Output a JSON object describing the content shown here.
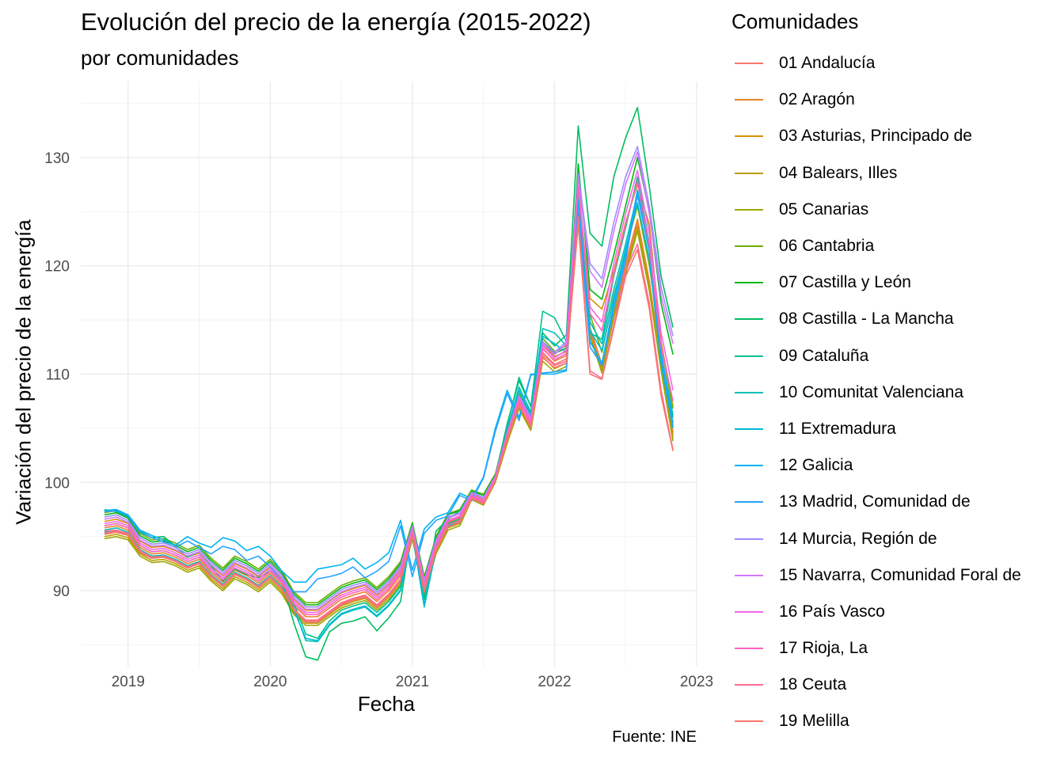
{
  "title": "Evolución del precio de la energía (2015-2022)",
  "subtitle": "por comunidades",
  "caption": "Fuente: INE",
  "chart_data": {
    "type": "line",
    "xlabel": "Fecha",
    "ylabel": "Variación del precio de la energía",
    "x_ticks": [
      "2019",
      "2020",
      "2021",
      "2022",
      "2023"
    ],
    "y_ticks": [
      90,
      100,
      110,
      120,
      130
    ],
    "xlim": [
      "2018-09",
      "2023-01"
    ],
    "ylim": [
      83,
      137
    ],
    "grid": true,
    "legend_title": "Comunidades",
    "legend_position": "right",
    "x": [
      "2018-11",
      "2018-12",
      "2019-01",
      "2019-02",
      "2019-03",
      "2019-04",
      "2019-05",
      "2019-06",
      "2019-07",
      "2019-08",
      "2019-09",
      "2019-10",
      "2019-11",
      "2019-12",
      "2020-01",
      "2020-02",
      "2020-03",
      "2020-04",
      "2020-05",
      "2020-06",
      "2020-07",
      "2020-08",
      "2020-09",
      "2020-10",
      "2020-11",
      "2020-12",
      "2021-01",
      "2021-02",
      "2021-03",
      "2021-04",
      "2021-05",
      "2021-06",
      "2021-07",
      "2021-08",
      "2021-09",
      "2021-10",
      "2021-11",
      "2021-12",
      "2022-01",
      "2022-02",
      "2022-03",
      "2022-04",
      "2022-05",
      "2022-06",
      "2022-07",
      "2022-08",
      "2022-09",
      "2022-10",
      "2022-11"
    ],
    "series": [
      {
        "name": "01 Andalucía",
        "color": "#F8766D",
        "values": [
          95.2,
          95.4,
          95.1,
          93.5,
          93.0,
          93.1,
          92.7,
          92.1,
          92.5,
          91.3,
          90.4,
          91.5,
          91.0,
          90.3,
          91.2,
          90.1,
          88.2,
          87.2,
          87.2,
          88.0,
          88.8,
          89.2,
          89.5,
          88.6,
          89.6,
          91.0,
          95.2,
          90.0,
          93.8,
          96.0,
          96.4,
          98.6,
          98.2,
          100.3,
          104.0,
          107.2,
          105.3,
          112.0,
          110.9,
          111.4,
          126.2,
          114.0,
          110.6,
          115.8,
          119.8,
          123.9,
          118.3,
          110.9,
          104.3
        ]
      },
      {
        "name": "02 Aragón",
        "color": "#E9842C",
        "values": [
          95.8,
          96.0,
          95.6,
          94.0,
          93.4,
          93.5,
          93.1,
          92.5,
          92.9,
          91.7,
          90.8,
          91.9,
          91.4,
          90.7,
          91.6,
          90.5,
          88.6,
          87.6,
          87.6,
          88.4,
          89.2,
          89.6,
          89.9,
          89.0,
          90.0,
          91.4,
          95.5,
          90.4,
          94.1,
          96.3,
          96.7,
          98.9,
          98.4,
          100.5,
          104.3,
          107.5,
          105.6,
          112.4,
          111.2,
          111.7,
          126.6,
          114.3,
          110.9,
          116.1,
          120.2,
          124.3,
          118.6,
          111.2,
          104.6
        ]
      },
      {
        "name": "03 Asturias, Principado de",
        "color": "#D69100",
        "values": [
          96.4,
          96.6,
          96.2,
          94.6,
          94.0,
          94.1,
          93.7,
          93.1,
          93.5,
          92.3,
          91.4,
          92.5,
          92.0,
          91.3,
          92.2,
          91.1,
          89.2,
          88.2,
          88.2,
          89.0,
          89.8,
          90.2,
          90.5,
          89.6,
          90.6,
          92.0,
          95.9,
          90.8,
          94.5,
          96.7,
          97.1,
          99.1,
          98.6,
          100.7,
          104.6,
          107.8,
          106.0,
          112.8,
          111.6,
          112.1,
          127.0,
          117.0,
          116.0,
          119.5,
          124.0,
          127.5,
          123.8,
          113.0,
          107.0
        ]
      },
      {
        "name": "04 Balears, Illes",
        "color": "#BC9D00",
        "values": [
          95.0,
          95.2,
          94.9,
          93.4,
          92.8,
          92.9,
          92.5,
          91.9,
          92.3,
          91.1,
          90.2,
          91.3,
          90.8,
          90.1,
          91.0,
          89.9,
          88.0,
          87.0,
          87.0,
          87.8,
          88.6,
          89.0,
          89.3,
          88.4,
          89.4,
          90.8,
          95.0,
          89.8,
          93.6,
          95.8,
          96.2,
          98.5,
          98.0,
          100.1,
          103.8,
          107.0,
          105.0,
          111.6,
          110.5,
          111.0,
          125.8,
          113.7,
          110.3,
          115.5,
          119.5,
          123.6,
          118.0,
          110.6,
          104.0
        ]
      },
      {
        "name": "05 Canarias",
        "color": "#9CA700",
        "values": [
          94.8,
          95.0,
          94.7,
          93.2,
          92.6,
          92.7,
          92.3,
          91.7,
          92.1,
          90.9,
          90.0,
          91.1,
          90.6,
          89.9,
          90.8,
          89.7,
          87.8,
          86.8,
          86.8,
          87.6,
          88.4,
          88.8,
          89.1,
          88.2,
          89.2,
          90.6,
          94.8,
          89.6,
          93.4,
          95.6,
          96.0,
          98.4,
          97.9,
          100.0,
          103.6,
          106.8,
          104.8,
          111.2,
          110.2,
          110.7,
          125.4,
          113.5,
          110.1,
          115.2,
          119.2,
          123.2,
          117.7,
          110.3,
          103.8
        ]
      },
      {
        "name": "06 Cantabria",
        "color": "#6FB000",
        "values": [
          97.2,
          97.4,
          96.9,
          95.3,
          94.7,
          94.8,
          94.4,
          93.8,
          94.2,
          93.0,
          92.1,
          93.2,
          92.7,
          92.0,
          92.9,
          91.8,
          89.9,
          88.9,
          88.9,
          89.7,
          90.5,
          90.9,
          91.2,
          90.3,
          91.3,
          92.7,
          96.3,
          91.3,
          95.0,
          97.1,
          97.5,
          99.3,
          98.9,
          100.8,
          105.0,
          108.2,
          106.4,
          113.3,
          112.1,
          112.6,
          127.8,
          115.5,
          112.0,
          117.2,
          121.4,
          125.5,
          120.0,
          112.6,
          106.8
        ]
      },
      {
        "name": "07 Castilla y León",
        "color": "#00B813",
        "values": [
          97.0,
          97.2,
          96.7,
          95.1,
          94.5,
          94.6,
          94.2,
          93.6,
          94.0,
          92.8,
          91.9,
          93.0,
          92.5,
          91.8,
          92.7,
          91.6,
          89.7,
          88.7,
          88.7,
          89.5,
          90.3,
          90.7,
          91.0,
          90.1,
          91.1,
          92.5,
          96.2,
          91.2,
          94.9,
          97.0,
          97.4,
          99.2,
          98.8,
          100.7,
          104.9,
          108.0,
          106.2,
          113.0,
          111.9,
          112.4,
          129.4,
          117.8,
          116.9,
          121.0,
          125.5,
          130.0,
          125.0,
          116.5,
          111.8
        ]
      },
      {
        "name": "08 Castilla - La Mancha",
        "color": "#00BD61",
        "values": [
          97.5,
          97.3,
          96.8,
          95.5,
          94.9,
          95.0,
          94.1,
          93.1,
          93.6,
          92.3,
          90.9,
          92.0,
          91.5,
          91.2,
          91.8,
          90.9,
          87.0,
          83.9,
          83.6,
          86.2,
          87.0,
          87.2,
          87.6,
          86.3,
          87.5,
          89.0,
          96.0,
          89.2,
          95.5,
          96.6,
          97.4,
          99.1,
          98.6,
          100.6,
          105.4,
          109.4,
          107.0,
          113.8,
          112.6,
          113.6,
          132.9,
          123.0,
          121.8,
          128.2,
          131.8,
          134.6,
          127.3,
          119.0,
          114.3
        ]
      },
      {
        "name": "09 Cataluña",
        "color": "#00C08E",
        "values": [
          96.0,
          96.2,
          95.8,
          94.2,
          93.6,
          93.7,
          93.3,
          92.7,
          93.1,
          91.9,
          91.0,
          92.1,
          91.6,
          90.9,
          91.8,
          90.7,
          88.8,
          86.0,
          85.6,
          87.2,
          88.2,
          88.6,
          88.9,
          88.0,
          89.0,
          90.4,
          95.6,
          89.2,
          94.2,
          96.2,
          96.6,
          98.8,
          98.3,
          100.4,
          105.2,
          109.7,
          107.0,
          115.8,
          115.2,
          113.0,
          124.0,
          113.8,
          113.2,
          119.0,
          123.5,
          128.2,
          122.0,
          111.5,
          106.0
        ]
      },
      {
        "name": "10 Comunitat Valenciana",
        "color": "#00C0B4",
        "values": [
          95.6,
          95.8,
          95.4,
          93.8,
          93.2,
          93.3,
          92.9,
          92.3,
          92.7,
          91.5,
          90.6,
          91.7,
          91.2,
          90.5,
          91.4,
          90.3,
          88.4,
          85.4,
          85.3,
          86.8,
          87.8,
          88.2,
          88.5,
          87.6,
          88.6,
          90.0,
          95.4,
          88.7,
          94.0,
          96.0,
          96.5,
          98.7,
          98.2,
          100.3,
          104.8,
          108.8,
          106.5,
          114.2,
          113.8,
          112.6,
          127.0,
          114.8,
          112.8,
          117.8,
          122.0,
          126.6,
          121.3,
          111.8,
          106.2
        ]
      },
      {
        "name": "11 Extremadura",
        "color": "#00BBD6",
        "values": [
          95.4,
          95.6,
          95.2,
          93.6,
          93.0,
          93.1,
          92.7,
          92.1,
          92.5,
          91.3,
          90.4,
          91.5,
          91.0,
          90.3,
          91.2,
          90.1,
          88.2,
          85.6,
          85.4,
          86.9,
          87.9,
          88.3,
          88.6,
          87.7,
          88.7,
          90.1,
          95.2,
          88.5,
          93.8,
          95.9,
          96.3,
          98.6,
          98.1,
          100.2,
          104.5,
          108.5,
          106.2,
          113.5,
          112.8,
          112.0,
          126.0,
          114.0,
          112.2,
          117.0,
          121.5,
          125.8,
          120.6,
          111.0,
          105.0
        ]
      },
      {
        "name": "12 Galicia",
        "color": "#00B3F2",
        "values": [
          97.4,
          97.5,
          97.0,
          95.6,
          95.1,
          94.7,
          94.2,
          95.0,
          94.4,
          94.0,
          94.9,
          94.6,
          93.7,
          94.1,
          93.2,
          91.8,
          90.8,
          90.8,
          92.0,
          92.2,
          92.4,
          93.0,
          92.0,
          92.6,
          93.5,
          96.5,
          91.9,
          95.7,
          96.8,
          97.2,
          99.0,
          98.5,
          100.5,
          105.0,
          108.5,
          106.0,
          110.0,
          110.0,
          110.0,
          110.3,
          125.5,
          113.0,
          111.0,
          116.5,
          121.0,
          127.0,
          122.0,
          112.0,
          105.5
        ]
      },
      {
        "name": "13 Madrid, Comunidad de",
        "color": "#29A3FF",
        "values": [
          97.3,
          97.4,
          96.9,
          95.4,
          94.9,
          94.5,
          94.0,
          94.6,
          94.0,
          93.4,
          94.1,
          93.8,
          92.8,
          93.2,
          92.2,
          90.9,
          89.9,
          89.9,
          91.1,
          91.3,
          91.6,
          92.2,
          91.2,
          91.8,
          92.7,
          96.0,
          91.3,
          95.3,
          96.5,
          96.9,
          98.8,
          98.3,
          100.4,
          104.7,
          108.2,
          105.7,
          109.9,
          110.1,
          110.2,
          110.4,
          125.2,
          112.5,
          110.8,
          116.0,
          120.5,
          126.5,
          121.5,
          111.5,
          105.2
        ]
      },
      {
        "name": "14 Murcia, Región de",
        "color": "#9C8DFF",
        "values": [
          96.8,
          97.0,
          96.5,
          94.9,
          94.3,
          94.4,
          94.0,
          93.4,
          93.8,
          92.6,
          91.7,
          92.8,
          92.3,
          91.6,
          92.5,
          91.4,
          89.5,
          88.5,
          88.5,
          89.3,
          90.1,
          90.5,
          90.8,
          89.9,
          90.9,
          92.3,
          96.0,
          91.0,
          94.7,
          96.8,
          97.2,
          99.1,
          98.6,
          100.6,
          104.6,
          108.0,
          106.0,
          113.0,
          112.0,
          113.0,
          128.5,
          120.2,
          118.8,
          124.0,
          128.2,
          131.0,
          125.5,
          118.0,
          113.5
        ]
      },
      {
        "name": "15 Navarra, Comunidad Foral de",
        "color": "#D277FF",
        "values": [
          96.6,
          96.8,
          96.3,
          94.7,
          94.1,
          94.2,
          93.8,
          93.2,
          93.6,
          92.4,
          91.5,
          92.6,
          92.1,
          91.4,
          92.3,
          91.2,
          89.3,
          88.3,
          88.3,
          89.1,
          89.9,
          90.3,
          90.6,
          89.7,
          90.7,
          92.1,
          95.8,
          90.8,
          94.6,
          96.7,
          97.1,
          99.0,
          98.5,
          100.5,
          104.5,
          107.9,
          105.9,
          112.8,
          111.8,
          112.8,
          128.0,
          119.5,
          118.0,
          123.2,
          127.5,
          130.5,
          124.8,
          117.2,
          112.8
        ]
      },
      {
        "name": "16 País Vasco",
        "color": "#F365E6",
        "values": [
          96.2,
          96.4,
          96.0,
          94.4,
          93.8,
          93.9,
          93.5,
          92.9,
          93.3,
          92.1,
          91.2,
          92.3,
          91.8,
          91.1,
          92.0,
          90.9,
          89.0,
          88.0,
          88.0,
          88.8,
          89.6,
          90.0,
          90.3,
          89.4,
          90.4,
          91.8,
          95.6,
          90.6,
          94.4,
          96.5,
          96.9,
          98.8,
          98.3,
          100.4,
          104.4,
          107.7,
          105.7,
          112.6,
          111.5,
          112.2,
          127.4,
          116.2,
          114.8,
          120.2,
          124.8,
          128.8,
          123.0,
          113.8,
          108.5
        ]
      },
      {
        "name": "17 Rioja, La",
        "color": "#FF62BC",
        "values": [
          96.0,
          96.2,
          95.8,
          94.2,
          93.6,
          93.7,
          93.3,
          92.7,
          93.1,
          91.9,
          91.0,
          92.1,
          91.6,
          90.9,
          91.8,
          90.7,
          88.8,
          87.8,
          87.8,
          88.6,
          89.4,
          89.8,
          90.1,
          89.2,
          90.2,
          91.6,
          95.5,
          90.4,
          94.2,
          96.4,
          96.8,
          98.7,
          98.2,
          100.3,
          104.3,
          107.6,
          105.5,
          112.3,
          111.3,
          111.9,
          127.2,
          115.6,
          114.0,
          119.2,
          123.8,
          127.8,
          121.8,
          112.6,
          107.5
        ]
      },
      {
        "name": "18 Ceuta",
        "color": "#FF6C91",
        "values": [
          95.5,
          95.6,
          95.3,
          93.7,
          93.1,
          93.2,
          92.8,
          92.2,
          92.6,
          91.4,
          90.5,
          91.6,
          91.1,
          90.4,
          91.3,
          90.2,
          88.3,
          87.3,
          87.3,
          88.1,
          88.9,
          89.3,
          89.6,
          88.7,
          89.7,
          91.1,
          95.3,
          90.1,
          93.9,
          96.1,
          96.5,
          98.6,
          98.1,
          100.2,
          104.1,
          107.3,
          105.2,
          111.8,
          110.8,
          111.2,
          124.5,
          110.3,
          109.6,
          114.5,
          119.5,
          122.0,
          116.5,
          108.5,
          103.0
        ]
      },
      {
        "name": "19 Melilla",
        "color": "#F8766D",
        "values": [
          95.3,
          95.5,
          95.2,
          93.6,
          93.0,
          93.1,
          92.7,
          92.1,
          92.5,
          91.3,
          90.4,
          91.5,
          91.0,
          90.3,
          91.2,
          90.1,
          88.2,
          87.1,
          87.1,
          87.9,
          88.7,
          89.1,
          89.4,
          88.5,
          89.5,
          90.9,
          95.1,
          89.9,
          93.7,
          95.9,
          96.3,
          98.5,
          98.0,
          100.1,
          103.9,
          107.1,
          105.1,
          111.5,
          110.6,
          111.0,
          123.8,
          110.0,
          109.5,
          114.2,
          119.0,
          121.5,
          116.0,
          108.0,
          102.9
        ]
      }
    ]
  }
}
